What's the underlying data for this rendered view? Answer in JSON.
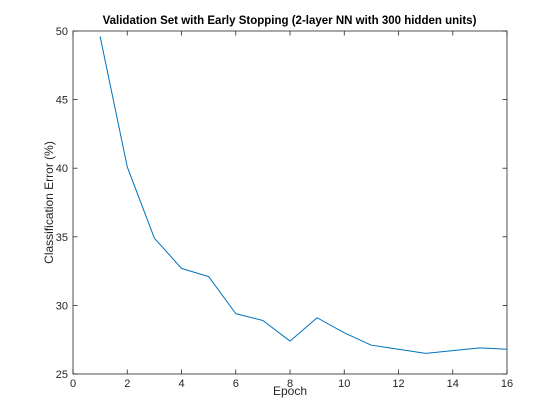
{
  "chart_data": {
    "type": "line",
    "title": "Validation Set with Early Stopping (2-layer NN with 300 hidden units)",
    "xlabel": "Epoch",
    "ylabel": "Classification Error (%)",
    "xlim": [
      0,
      16
    ],
    "ylim": [
      25,
      50
    ],
    "xticks": [
      0,
      2,
      4,
      6,
      8,
      10,
      12,
      14,
      16
    ],
    "yticks": [
      25,
      30,
      35,
      40,
      45,
      50
    ],
    "grid": false,
    "legend": "none",
    "series": [
      {
        "color": "#0072BD",
        "x": [
          1,
          2,
          3,
          4,
          5,
          6,
          7,
          8,
          9,
          10,
          11,
          12,
          13,
          14,
          15,
          16
        ],
        "y": [
          49.6,
          40.1,
          34.9,
          32.7,
          32.1,
          29.4,
          28.9,
          27.4,
          29.1,
          28.0,
          27.1,
          26.8,
          26.5,
          26.7,
          26.9,
          26.8
        ]
      }
    ]
  }
}
